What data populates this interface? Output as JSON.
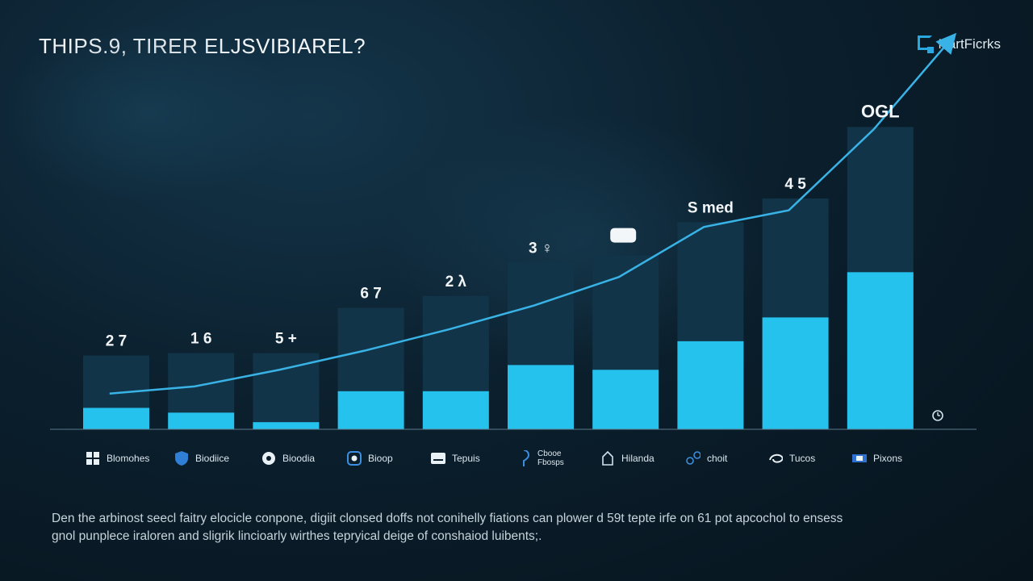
{
  "header": {
    "title": "THIPS.9, TIRER ELJSVIBIAREL?",
    "brand": "NartFicrks"
  },
  "colors": {
    "accent": "#26c2ee",
    "bar_dark": "#123448",
    "line": "#39b3e6"
  },
  "chart_data": {
    "type": "bar",
    "categories": [
      "Blomohes",
      "Biodiice",
      "Bioodia",
      "Bioop",
      "Tepuis",
      "Cbooe Fbosps",
      "Hilanda",
      "choit",
      "Tucos",
      "Pixons"
    ],
    "series": [
      {
        "values": [
          2.2,
          2.5,
          2.9,
          3.5,
          4.0,
          4.3,
          4.8,
          5.0,
          5.0,
          6.1
        ]
      },
      {
        "values": [
          0.9,
          0.7,
          0.3,
          1.6,
          1.6,
          2.7,
          2.5,
          3.7,
          4.7,
          6.6
        ]
      }
    ],
    "trend": [
      1.5,
      1.8,
      2.5,
      3.3,
      4.2,
      5.2,
      6.4,
      8.5,
      9.2,
      12.6
    ],
    "value_labels": [
      "2 7",
      "1 6",
      "5 +",
      "6 7",
      "2 λ",
      "3 ♀",
      "",
      "S med",
      "4 5",
      "OGL"
    ],
    "ylim": [
      0,
      16
    ]
  },
  "legend_icons": [
    "windows-icon",
    "shield-icon",
    "globe-icon",
    "app-icon",
    "card-icon",
    "pin-icon",
    "house-icon",
    "nodes-icon",
    "swirl-icon",
    "flag-icon"
  ],
  "footnote": {
    "line1": "Den the arbinost seecl faitry elocicle conpone, digiit clonsed doffs not conihelly fiations can plower d 59t tepte irfe on 61 pot apcochol to ensess",
    "line2": "gnol punplece iraloren and sligrik lincioarly wirthes tepryical deige of conshaiod luibents;."
  }
}
